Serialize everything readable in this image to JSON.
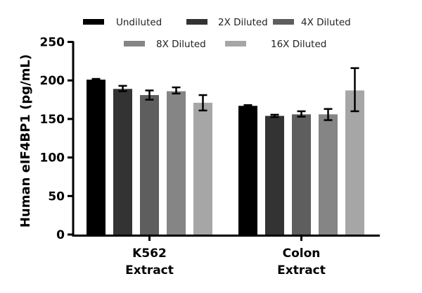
{
  "chart_data": {
    "type": "bar",
    "title": "",
    "xlabel": "",
    "ylabel": "Human eIF4BP1 (pg/mL)",
    "ylim": [
      0,
      250
    ],
    "yticks": [
      "0",
      "50",
      "100",
      "150",
      "200",
      "250"
    ],
    "categories": [
      [
        "K562",
        "Extract"
      ],
      [
        "Colon",
        "Extract"
      ]
    ],
    "legend_position": "top",
    "series": [
      {
        "name": "Undiluted",
        "color": "#000000",
        "values": [
          201,
          167
        ],
        "errors": [
          [
            200,
            202
          ],
          [
            166,
            168
          ]
        ]
      },
      {
        "name": "2X Diluted",
        "color": "#333333",
        "values": [
          189,
          154
        ],
        "errors": [
          [
            186,
            193
          ],
          [
            152.5,
            155.5
          ]
        ]
      },
      {
        "name": "4X Diluted",
        "color": "#5e5e5e",
        "values": [
          181,
          156
        ],
        "errors": [
          [
            175,
            187
          ],
          [
            153,
            160
          ]
        ]
      },
      {
        "name": "8X Diluted",
        "color": "#858585",
        "values": [
          186,
          156
        ],
        "errors": [
          [
            183,
            191
          ],
          [
            148.5,
            163
          ]
        ]
      },
      {
        "name": "16X Diluted",
        "color": "#a6a6a6",
        "values": [
          171,
          187
        ],
        "errors": [
          [
            161,
            181
          ],
          [
            160,
            216
          ]
        ]
      }
    ]
  }
}
